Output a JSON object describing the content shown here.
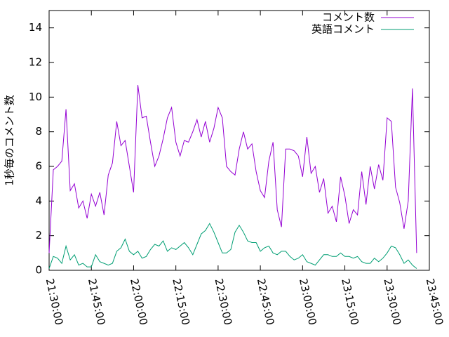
{
  "chart_data": {
    "type": "line",
    "y_label": "1秒毎のコメント数",
    "x": [
      "21:30:00",
      "21:31:30",
      "21:33:00",
      "21:34:30",
      "21:36:00",
      "21:37:30",
      "21:39:00",
      "21:40:30",
      "21:42:00",
      "21:43:30",
      "21:45:00",
      "21:46:30",
      "21:48:00",
      "21:49:30",
      "21:51:00",
      "21:52:30",
      "21:54:00",
      "21:55:30",
      "21:57:00",
      "21:58:30",
      "22:00:00",
      "22:01:30",
      "22:03:00",
      "22:04:30",
      "22:06:00",
      "22:07:30",
      "22:09:00",
      "22:10:30",
      "22:12:00",
      "22:13:30",
      "22:15:00",
      "22:16:30",
      "22:18:00",
      "22:19:30",
      "22:21:00",
      "22:22:30",
      "22:24:00",
      "22:25:30",
      "22:27:00",
      "22:28:30",
      "22:30:00",
      "22:31:30",
      "22:33:00",
      "22:34:30",
      "22:36:00",
      "22:37:30",
      "22:39:00",
      "22:40:30",
      "22:42:00",
      "22:43:30",
      "22:45:00",
      "22:46:30",
      "22:48:00",
      "22:49:30",
      "22:51:00",
      "22:52:30",
      "22:54:00",
      "22:55:30",
      "22:57:00",
      "22:58:30",
      "23:00:00",
      "23:01:30",
      "23:03:00",
      "23:04:30",
      "23:06:00",
      "23:07:30",
      "23:09:00",
      "23:10:30",
      "23:12:00",
      "23:13:30",
      "23:15:00",
      "23:16:30",
      "23:18:00",
      "23:19:30",
      "23:21:00",
      "23:22:30",
      "23:24:00",
      "23:25:30",
      "23:27:00",
      "23:28:30",
      "23:30:00",
      "23:31:30",
      "23:33:00",
      "23:34:30",
      "23:36:00",
      "23:37:30",
      "23:39:00",
      "23:40:30"
    ],
    "series": [
      {
        "name": "コメント数",
        "color": "#9400d3",
        "values": [
          1.0,
          5.8,
          6.0,
          6.3,
          9.3,
          4.6,
          5.0,
          3.6,
          4.0,
          3.0,
          4.4,
          3.7,
          4.5,
          3.2,
          5.5,
          6.2,
          8.6,
          7.2,
          7.5,
          6.0,
          4.5,
          10.7,
          8.8,
          8.9,
          7.4,
          6.0,
          6.6,
          7.6,
          8.8,
          9.4,
          7.4,
          6.6,
          7.5,
          7.4,
          8.0,
          8.7,
          7.7,
          8.6,
          7.4,
          8.2,
          9.4,
          8.8,
          6.0,
          5.7,
          5.5,
          7.0,
          8.0,
          7.0,
          7.3,
          5.7,
          4.6,
          4.2,
          6.3,
          7.4,
          3.5,
          2.5,
          7.0,
          7.0,
          6.9,
          6.6,
          5.4,
          7.7,
          5.6,
          6.0,
          4.5,
          5.3,
          3.3,
          3.7,
          2.8,
          5.4,
          4.3,
          2.7,
          3.5,
          3.2,
          5.7,
          3.8,
          6.0,
          4.7,
          6.1,
          5.2,
          8.8,
          8.6,
          4.8,
          3.9,
          2.4,
          4.0,
          10.5,
          1.0
        ]
      },
      {
        "name": "英語コメント",
        "color": "#009e73",
        "values": [
          0.1,
          0.8,
          0.7,
          0.4,
          1.4,
          0.6,
          0.9,
          0.3,
          0.4,
          0.2,
          0.2,
          0.9,
          0.5,
          0.4,
          0.3,
          0.4,
          1.1,
          1.3,
          1.8,
          1.1,
          0.9,
          1.1,
          0.7,
          0.8,
          1.2,
          1.5,
          1.4,
          1.7,
          1.1,
          1.3,
          1.2,
          1.4,
          1.6,
          1.3,
          0.9,
          1.5,
          2.1,
          2.3,
          2.7,
          2.2,
          1.6,
          1.0,
          1.0,
          1.2,
          2.2,
          2.6,
          2.2,
          1.7,
          1.6,
          1.6,
          1.1,
          1.3,
          1.4,
          1.0,
          0.9,
          1.1,
          1.1,
          0.8,
          0.6,
          0.7,
          0.9,
          0.5,
          0.4,
          0.3,
          0.6,
          0.9,
          0.9,
          0.8,
          0.8,
          1.0,
          0.8,
          0.8,
          0.7,
          0.8,
          0.5,
          0.4,
          0.4,
          0.7,
          0.5,
          0.7,
          1.0,
          1.4,
          1.3,
          0.9,
          0.4,
          0.6,
          0.3,
          0.1
        ]
      }
    ],
    "xlim": [
      "21:30:00",
      "23:45:00"
    ],
    "xticks": [
      "21:30:00",
      "21:45:00",
      "22:00:00",
      "22:15:00",
      "22:30:00",
      "22:45:00",
      "23:00:00",
      "23:15:00",
      "23:30:00",
      "23:45:00"
    ],
    "ylim": [
      0,
      15
    ],
    "yticks": [
      0,
      2,
      4,
      6,
      8,
      10,
      12,
      14
    ],
    "legend": "top-right"
  }
}
